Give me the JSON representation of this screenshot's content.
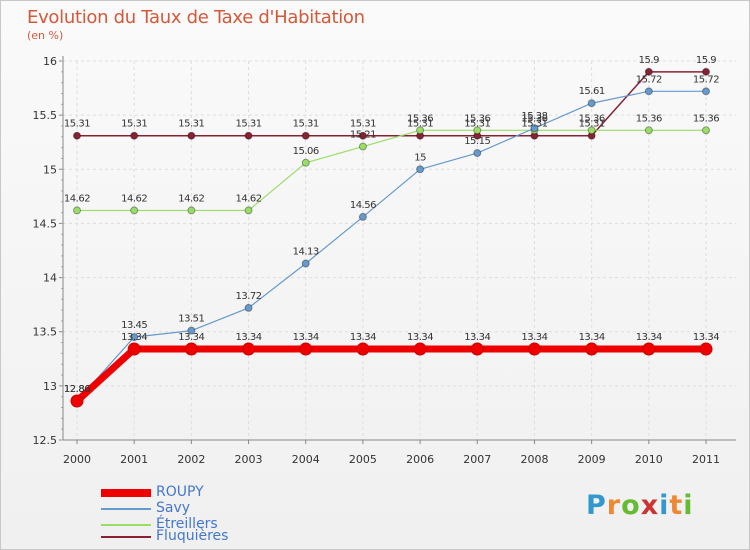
{
  "chart_data": {
    "type": "line",
    "title": "Evolution du Taux de Taxe d'Habitation",
    "ylabel": "(en %)",
    "ylim": [
      12.5,
      16
    ],
    "yticks": [
      "12.5",
      "13",
      "13.5",
      "14",
      "14.5",
      "15",
      "15.5",
      "16"
    ],
    "x": [
      "2000",
      "2001",
      "2002",
      "2003",
      "2004",
      "2005",
      "2006",
      "2007",
      "2008",
      "2009",
      "2010",
      "2011"
    ],
    "grid": true,
    "legend_position": "bottom-left",
    "series": [
      {
        "name": "ROUPY",
        "color": "#ee0000",
        "values": [
          12.86,
          13.34,
          13.34,
          13.34,
          13.34,
          13.34,
          13.34,
          13.34,
          13.34,
          13.34,
          13.34,
          13.34
        ],
        "labels": [
          "12.86",
          "13.34",
          "13.34",
          "13.34",
          "13.34",
          "13.34",
          "13.34",
          "13.34",
          "13.34",
          "13.34",
          "13.34",
          "13.34"
        ]
      },
      {
        "name": "Savy",
        "color": "#6699cc",
        "values": [
          12.86,
          13.45,
          13.51,
          13.72,
          14.13,
          14.56,
          15.0,
          15.15,
          15.38,
          15.61,
          15.72,
          15.72
        ],
        "labels": [
          "12.86",
          "13.45",
          "13.51",
          "13.72",
          "14.13",
          "14.56",
          "15",
          "15.15",
          "15.38",
          "15.61",
          "15.72",
          "15.72"
        ]
      },
      {
        "name": "Étreillers",
        "color": "#99dd66",
        "values": [
          14.62,
          14.62,
          14.62,
          14.62,
          15.06,
          15.21,
          15.36,
          15.36,
          15.36,
          15.36,
          15.36,
          15.36
        ],
        "labels": [
          "14.62",
          "14.62",
          "14.62",
          "14.62",
          "15.06",
          "15.21",
          "15.36",
          "15.36",
          "15.36",
          "15.36",
          "15.36",
          "15.36"
        ]
      },
      {
        "name": "Fluquières",
        "color": "#882233",
        "values": [
          15.31,
          15.31,
          15.31,
          15.31,
          15.31,
          15.31,
          15.31,
          15.31,
          15.31,
          15.31,
          15.9,
          15.9
        ],
        "labels": [
          "15.31",
          "15.31",
          "15.31",
          "15.31",
          "15.31",
          "15.31",
          "15.31",
          "15.31",
          "15.31",
          "15.31",
          "15.9",
          "15.9"
        ]
      }
    ]
  },
  "logo": {
    "letters": [
      "P",
      "r",
      "o",
      "x",
      "i",
      "t",
      "i"
    ],
    "colors": [
      "#3399cc",
      "#ee8833",
      "#66bb33",
      "#cc3333",
      "#3399cc",
      "#ee8833",
      "#66bb33"
    ]
  }
}
